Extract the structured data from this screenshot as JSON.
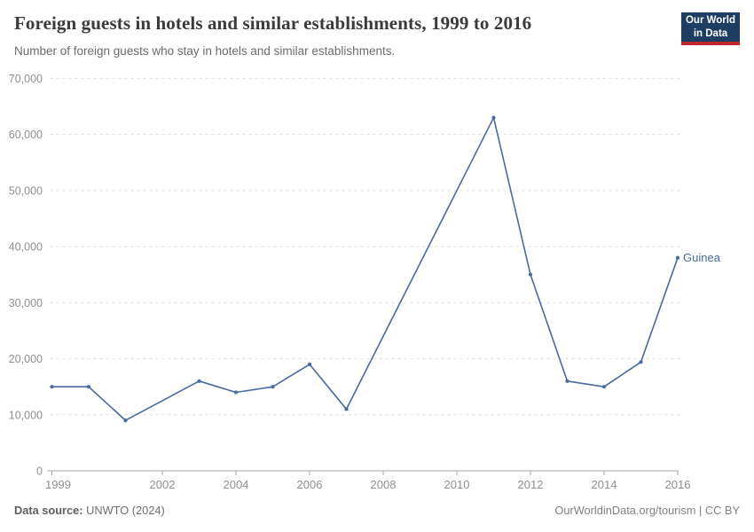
{
  "header": {
    "title": "Foreign guests in hotels and similar establishments, 1999 to 2016",
    "subtitle": "Number of foreign guests who stay in hotels and similar establishments.",
    "logo": {
      "line1": "Our World",
      "line2": "in Data"
    }
  },
  "chart_data": {
    "type": "line",
    "title": "Foreign guests in hotels and similar establishments, 1999 to 2016",
    "xlabel": "",
    "ylabel": "",
    "xlim": [
      1999,
      2016
    ],
    "ylim": [
      0,
      70000
    ],
    "grid": "dashed-horizontal",
    "legend_position": "end-of-line-label",
    "x_ticks": [
      1999,
      2002,
      2004,
      2006,
      2008,
      2010,
      2012,
      2014,
      2016
    ],
    "y_ticks": [
      0,
      10000,
      20000,
      30000,
      40000,
      50000,
      60000,
      70000
    ],
    "y_tick_labels": [
      "0",
      "10,000",
      "20,000",
      "30,000",
      "40,000",
      "50,000",
      "60,000",
      "70,000"
    ],
    "x": [
      1999,
      2000,
      2001,
      2002,
      2003,
      2004,
      2005,
      2006,
      2007,
      2008,
      2009,
      2010,
      2011,
      2012,
      2013,
      2014,
      2015,
      2016
    ],
    "series": [
      {
        "name": "Guinea",
        "color": "#4a69a0",
        "values": [
          15000,
          15000,
          9000,
          null,
          16000,
          14000,
          15000,
          19000,
          11000,
          null,
          null,
          null,
          63000,
          35000,
          16000,
          15000,
          19400,
          38000
        ],
        "note": "gaps (2002, 2008-2010) are connected by straight segments without markers"
      }
    ],
    "colors": {
      "line": "#4a69a0",
      "grid": "#dcdcdc",
      "axis": "#a5a5a5",
      "tick_label": "#8f8f8f"
    }
  },
  "footer": {
    "source_label": "Data source:",
    "source_value": "UNWTO (2024)",
    "credit": "OurWorldinData.org/tourism | CC BY"
  }
}
